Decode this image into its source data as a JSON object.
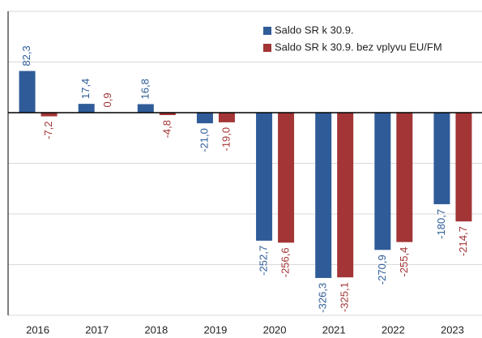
{
  "chart_data": {
    "type": "bar",
    "categories": [
      "2016",
      "2017",
      "2018",
      "2019",
      "2020",
      "2021",
      "2022",
      "2023"
    ],
    "series": [
      {
        "name": "Saldo SR k 30.9.",
        "color": "#2f5c98",
        "values": [
          82.3,
          17.4,
          16.8,
          -21.0,
          -252.7,
          -326.3,
          -270.9,
          -180.7
        ],
        "value_labels": [
          "82,3",
          "17,4",
          "16,8",
          "-21,0",
          "-252,7",
          "-326,3",
          "-270,9",
          "-180,7"
        ]
      },
      {
        "name": "Saldo SR k 30.9. bez vplyvu EU/FM",
        "color": "#a33536",
        "values": [
          -7.2,
          0.9,
          -4.8,
          -19.0,
          -256.6,
          -325.1,
          -255.4,
          -214.7
        ],
        "value_labels": [
          "-7,2",
          "0,9",
          "-4,8",
          "-19,0",
          "-256,6",
          "-325,1",
          "-255,4",
          "-214,7"
        ]
      }
    ],
    "ylim": [
      -400,
      200
    ],
    "yticks": [
      -400,
      -300,
      -200,
      -100,
      0,
      100,
      200
    ],
    "grid": true,
    "legend": "upper right"
  }
}
